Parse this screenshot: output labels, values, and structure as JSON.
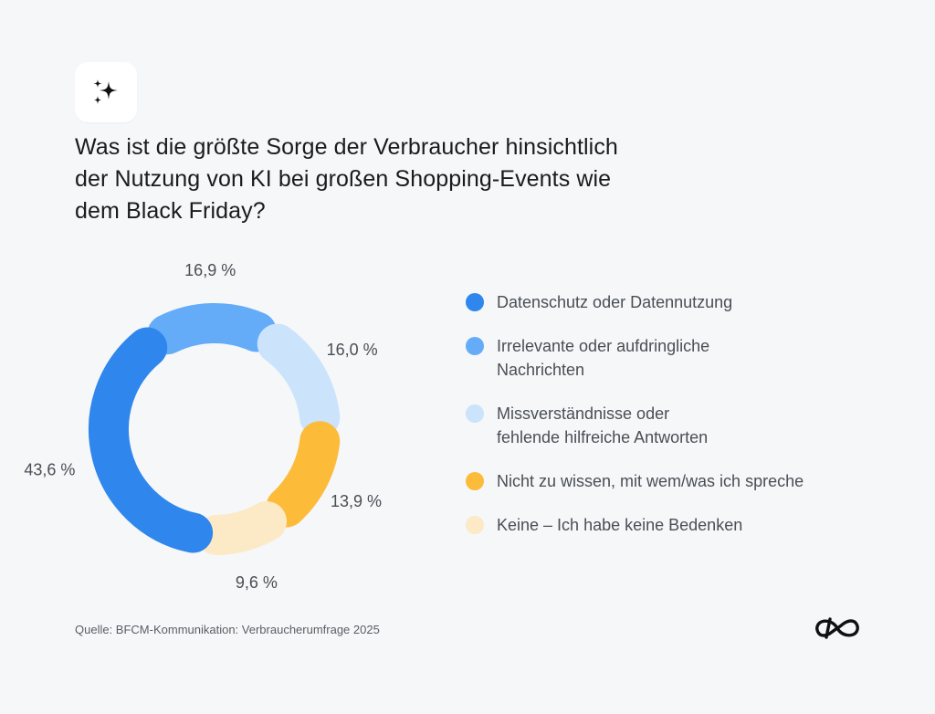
{
  "header": {
    "icon": "sparkles-icon",
    "title_lines": [
      "Was ist die größte Sorge der Verbraucher hinsichtlich",
      "der Nutzung von KI bei großen Shopping-Events wie",
      "dem Black Friday?"
    ]
  },
  "chart_data": {
    "type": "pie",
    "variant": "donut",
    "title": "Was ist die größte Sorge der Verbraucher hinsichtlich der Nutzung von KI bei großen Shopping-Events wie dem Black Friday?",
    "categories": [
      "Datenschutz oder Datennutzung",
      "Irrelevante oder aufdringliche Nachrichten",
      "Missverständnisse oder fehlende hilfreiche Antworten",
      "Nicht zu wissen, mit wem/was ich spreche",
      "Keine – Ich habe keine Bedenken"
    ],
    "values": [
      43.6,
      16.9,
      16.0,
      13.9,
      9.6
    ],
    "labels": [
      "43,6 %",
      "16,9 %",
      "16,0 %",
      "13,9 %",
      "9,6 %"
    ],
    "colors": [
      "#2f86ec",
      "#64acf7",
      "#cbe3fb",
      "#fdbb3a",
      "#fce9c6"
    ],
    "legend_placement": "right"
  },
  "legend": [
    {
      "lines": [
        "Datenschutz oder Datennutzung"
      ],
      "color": "#2f86ec"
    },
    {
      "lines": [
        "Irrelevante oder aufdringliche",
        "Nachrichten"
      ],
      "color": "#64acf7"
    },
    {
      "lines": [
        "Missverständnisse oder",
        "fehlende hilfreiche Antworten"
      ],
      "color": "#cbe3fb"
    },
    {
      "lines": [
        "Nicht zu wissen, mit wem/was ich spreche"
      ],
      "color": "#fdbb3a"
    },
    {
      "lines": [
        "Keine – Ich habe keine Bedenken"
      ],
      "color": "#fce9c6"
    }
  ],
  "footer": {
    "source": "Quelle: BFCM-Kommunikation: Verbraucherumfrage 2025",
    "logo": "brand-logo-icon"
  }
}
